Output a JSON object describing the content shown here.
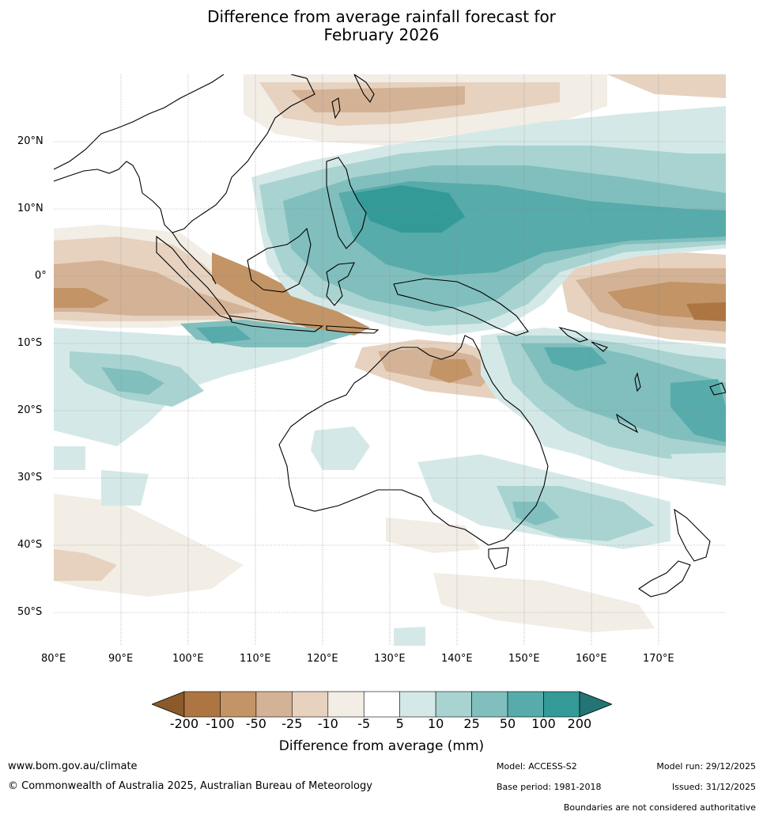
{
  "title_line1": "Difference from average rainfall forecast for",
  "title_line2": "February 2026",
  "map": {
    "lon_labels": [
      "80°E",
      "90°E",
      "100°E",
      "110°E",
      "120°E",
      "130°E",
      "140°E",
      "150°E",
      "160°E",
      "170°E"
    ],
    "lat_labels": [
      "20°N",
      "10°N",
      "0°",
      "10°S",
      "20°S",
      "30°S",
      "40°S",
      "50°S"
    ],
    "lon_range": [
      80,
      180
    ],
    "lat_range": [
      -55,
      30
    ]
  },
  "legend": {
    "ticks": [
      "-200",
      "-100",
      "-50",
      "-25",
      "-10",
      "-5",
      "5",
      "10",
      "25",
      "50",
      "100",
      "200"
    ],
    "colors": [
      "#8b5a2b",
      "#ad7541",
      "#c29466",
      "#d4b295",
      "#e6d2bf",
      "#f2ede5",
      "#ffffff",
      "#d4e9e7",
      "#a8d3d1",
      "#80bfbd",
      "#57abaa",
      "#339a97",
      "#237474"
    ],
    "label": "Difference from average (mm)"
  },
  "footer": {
    "website": "www.bom.gov.au/climate",
    "copyright": "© Commonwealth of Australia 2025, Australian Bureau of Meteorology",
    "model": "Model: ACCESS-S2",
    "base_period": "Base period: 1981-2018",
    "model_run": "Model run: 29/12/2025",
    "issued": "Issued: 31/12/2025",
    "disclaimer": "Boundaries are not considered authoritative"
  }
}
